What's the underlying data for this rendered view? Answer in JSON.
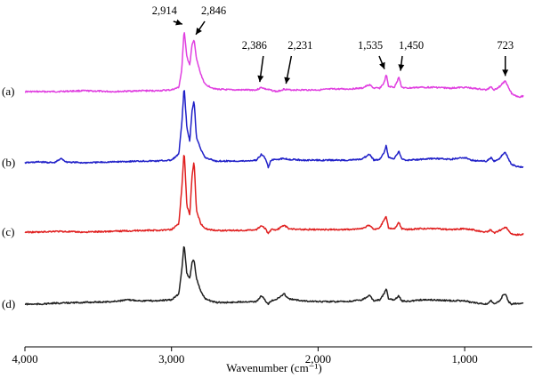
{
  "chart_data": {
    "type": "line",
    "title": "",
    "xlabel": "Wavenumber (cm⁻¹)",
    "ylabel": "",
    "x_reversed": true,
    "xlim": [
      4000,
      600
    ],
    "x_ticks": [
      {
        "value": 4000,
        "label": "4,000"
      },
      {
        "value": 3000,
        "label": "3,000"
      },
      {
        "value": 2000,
        "label": "2,000"
      },
      {
        "value": 1000,
        "label": "1,000"
      }
    ],
    "grid": false,
    "legend": "none",
    "series": [
      {
        "name": "(a)",
        "color": "#e040e0",
        "points": [
          [
            4000,
            0.0
          ],
          [
            3800,
            0.0
          ],
          [
            3600,
            0.01
          ],
          [
            3400,
            0.0
          ],
          [
            3200,
            0.01
          ],
          [
            3100,
            0.01
          ],
          [
            3000,
            0.02
          ],
          [
            2950,
            0.05
          ],
          [
            2930,
            0.25
          ],
          [
            2914,
            0.72
          ],
          [
            2895,
            0.4
          ],
          [
            2875,
            0.3
          ],
          [
            2860,
            0.55
          ],
          [
            2846,
            0.6
          ],
          [
            2830,
            0.38
          ],
          [
            2800,
            0.2
          ],
          [
            2770,
            0.08
          ],
          [
            2700,
            0.03
          ],
          [
            2600,
            0.02
          ],
          [
            2500,
            0.02
          ],
          [
            2420,
            0.02
          ],
          [
            2386,
            0.05
          ],
          [
            2360,
            0.03
          ],
          [
            2330,
            0.02
          ],
          [
            2280,
            0.0
          ],
          [
            2231,
            0.03
          ],
          [
            2200,
            0.02
          ],
          [
            2100,
            0.02
          ],
          [
            2000,
            0.02
          ],
          [
            1900,
            0.03
          ],
          [
            1800,
            0.03
          ],
          [
            1700,
            0.04
          ],
          [
            1650,
            0.08
          ],
          [
            1620,
            0.04
          ],
          [
            1580,
            0.04
          ],
          [
            1550,
            0.1
          ],
          [
            1535,
            0.2
          ],
          [
            1520,
            0.06
          ],
          [
            1480,
            0.05
          ],
          [
            1460,
            0.12
          ],
          [
            1450,
            0.18
          ],
          [
            1430,
            0.05
          ],
          [
            1400,
            0.04
          ],
          [
            1300,
            0.05
          ],
          [
            1200,
            0.05
          ],
          [
            1100,
            0.04
          ],
          [
            1000,
            0.05
          ],
          [
            950,
            0.04
          ],
          [
            900,
            0.03
          ],
          [
            850,
            0.02
          ],
          [
            820,
            0.06
          ],
          [
            800,
            0.02
          ],
          [
            760,
            0.06
          ],
          [
            740,
            0.1
          ],
          [
            723,
            0.12
          ],
          [
            700,
            0.05
          ],
          [
            680,
            -0.02
          ],
          [
            650,
            -0.05
          ],
          [
            620,
            -0.06
          ],
          [
            600,
            -0.05
          ]
        ]
      },
      {
        "name": "(b)",
        "color": "#2020c8",
        "points": [
          [
            4000,
            0.0
          ],
          [
            3900,
            0.01
          ],
          [
            3800,
            0.0
          ],
          [
            3750,
            0.05
          ],
          [
            3720,
            0.01
          ],
          [
            3600,
            0.0
          ],
          [
            3400,
            0.01
          ],
          [
            3200,
            0.02
          ],
          [
            3100,
            0.02
          ],
          [
            3000,
            0.03
          ],
          [
            2950,
            0.1
          ],
          [
            2930,
            0.45
          ],
          [
            2914,
            0.88
          ],
          [
            2895,
            0.4
          ],
          [
            2875,
            0.25
          ],
          [
            2860,
            0.6
          ],
          [
            2846,
            0.72
          ],
          [
            2830,
            0.3
          ],
          [
            2800,
            0.15
          ],
          [
            2770,
            0.06
          ],
          [
            2700,
            0.02
          ],
          [
            2600,
            0.02
          ],
          [
            2500,
            0.02
          ],
          [
            2420,
            0.03
          ],
          [
            2386,
            0.1
          ],
          [
            2360,
            0.05
          ],
          [
            2340,
            -0.05
          ],
          [
            2320,
            0.03
          ],
          [
            2280,
            0.04
          ],
          [
            2231,
            0.05
          ],
          [
            2200,
            0.04
          ],
          [
            2100,
            0.03
          ],
          [
            2000,
            0.03
          ],
          [
            1900,
            0.03
          ],
          [
            1800,
            0.03
          ],
          [
            1700,
            0.04
          ],
          [
            1650,
            0.1
          ],
          [
            1620,
            0.03
          ],
          [
            1580,
            0.04
          ],
          [
            1550,
            0.12
          ],
          [
            1535,
            0.2
          ],
          [
            1520,
            0.06
          ],
          [
            1480,
            0.05
          ],
          [
            1460,
            0.1
          ],
          [
            1450,
            0.14
          ],
          [
            1430,
            0.04
          ],
          [
            1400,
            0.03
          ],
          [
            1300,
            0.04
          ],
          [
            1200,
            0.05
          ],
          [
            1100,
            0.04
          ],
          [
            1000,
            0.06
          ],
          [
            950,
            0.03
          ],
          [
            900,
            0.02
          ],
          [
            850,
            0.02
          ],
          [
            820,
            0.06
          ],
          [
            800,
            0.02
          ],
          [
            760,
            0.05
          ],
          [
            740,
            0.1
          ],
          [
            723,
            0.12
          ],
          [
            700,
            0.04
          ],
          [
            680,
            -0.02
          ],
          [
            650,
            -0.04
          ],
          [
            620,
            -0.05
          ],
          [
            600,
            -0.05
          ]
        ]
      },
      {
        "name": "(c)",
        "color": "#e02020",
        "points": [
          [
            4000,
            0.0
          ],
          [
            3900,
            0.0
          ],
          [
            3800,
            0.01
          ],
          [
            3600,
            0.0
          ],
          [
            3400,
            0.01
          ],
          [
            3200,
            0.02
          ],
          [
            3100,
            0.02
          ],
          [
            3000,
            0.03
          ],
          [
            2950,
            0.1
          ],
          [
            2930,
            0.5
          ],
          [
            2914,
            0.95
          ],
          [
            2895,
            0.3
          ],
          [
            2875,
            0.2
          ],
          [
            2860,
            0.65
          ],
          [
            2846,
            0.82
          ],
          [
            2830,
            0.25
          ],
          [
            2800,
            0.1
          ],
          [
            2770,
            0.04
          ],
          [
            2700,
            0.02
          ],
          [
            2600,
            0.02
          ],
          [
            2500,
            0.02
          ],
          [
            2420,
            0.03
          ],
          [
            2386,
            0.08
          ],
          [
            2360,
            0.04
          ],
          [
            2340,
            -0.02
          ],
          [
            2320,
            0.03
          ],
          [
            2280,
            0.03
          ],
          [
            2231,
            0.08
          ],
          [
            2200,
            0.04
          ],
          [
            2100,
            0.03
          ],
          [
            2000,
            0.03
          ],
          [
            1900,
            0.03
          ],
          [
            1800,
            0.03
          ],
          [
            1700,
            0.04
          ],
          [
            1650,
            0.08
          ],
          [
            1620,
            0.03
          ],
          [
            1580,
            0.05
          ],
          [
            1550,
            0.14
          ],
          [
            1535,
            0.18
          ],
          [
            1520,
            0.05
          ],
          [
            1480,
            0.04
          ],
          [
            1460,
            0.08
          ],
          [
            1450,
            0.12
          ],
          [
            1430,
            0.04
          ],
          [
            1400,
            0.03
          ],
          [
            1300,
            0.04
          ],
          [
            1200,
            0.04
          ],
          [
            1100,
            0.03
          ],
          [
            1000,
            0.04
          ],
          [
            950,
            0.03
          ],
          [
            900,
            0.01
          ],
          [
            850,
            0.0
          ],
          [
            820,
            0.03
          ],
          [
            800,
            -0.01
          ],
          [
            760,
            0.02
          ],
          [
            740,
            0.04
          ],
          [
            723,
            0.06
          ],
          [
            700,
            0.02
          ],
          [
            680,
            -0.02
          ],
          [
            650,
            -0.03
          ],
          [
            620,
            -0.03
          ],
          [
            600,
            -0.02
          ]
        ]
      },
      {
        "name": "(d)",
        "color": "#202020",
        "points": [
          [
            4000,
            0.0
          ],
          [
            3900,
            0.0
          ],
          [
            3800,
            0.01
          ],
          [
            3600,
            0.02
          ],
          [
            3400,
            0.03
          ],
          [
            3300,
            0.05
          ],
          [
            3200,
            0.04
          ],
          [
            3100,
            0.04
          ],
          [
            3000,
            0.05
          ],
          [
            2950,
            0.12
          ],
          [
            2930,
            0.4
          ],
          [
            2914,
            0.7
          ],
          [
            2895,
            0.35
          ],
          [
            2875,
            0.3
          ],
          [
            2860,
            0.48
          ],
          [
            2846,
            0.52
          ],
          [
            2830,
            0.3
          ],
          [
            2800,
            0.15
          ],
          [
            2770,
            0.06
          ],
          [
            2700,
            0.02
          ],
          [
            2600,
            0.02
          ],
          [
            2500,
            0.03
          ],
          [
            2420,
            0.03
          ],
          [
            2386,
            0.1
          ],
          [
            2360,
            0.04
          ],
          [
            2340,
            0.0
          ],
          [
            2320,
            0.04
          ],
          [
            2280,
            0.06
          ],
          [
            2231,
            0.12
          ],
          [
            2200,
            0.06
          ],
          [
            2100,
            0.04
          ],
          [
            2000,
            0.03
          ],
          [
            1900,
            0.03
          ],
          [
            1800,
            0.03
          ],
          [
            1700,
            0.05
          ],
          [
            1650,
            0.1
          ],
          [
            1620,
            0.04
          ],
          [
            1580,
            0.05
          ],
          [
            1550,
            0.12
          ],
          [
            1535,
            0.18
          ],
          [
            1520,
            0.06
          ],
          [
            1480,
            0.05
          ],
          [
            1460,
            0.08
          ],
          [
            1450,
            0.1
          ],
          [
            1430,
            0.04
          ],
          [
            1400,
            0.03
          ],
          [
            1300,
            0.05
          ],
          [
            1200,
            0.05
          ],
          [
            1100,
            0.04
          ],
          [
            1000,
            0.04
          ],
          [
            950,
            0.02
          ],
          [
            900,
            0.01
          ],
          [
            850,
            0.0
          ],
          [
            820,
            0.04
          ],
          [
            800,
            0.0
          ],
          [
            760,
            0.04
          ],
          [
            740,
            0.1
          ],
          [
            723,
            0.12
          ],
          [
            700,
            0.03
          ],
          [
            680,
            0.0
          ],
          [
            650,
            0.01
          ],
          [
            620,
            0.01
          ],
          [
            600,
            0.01
          ]
        ]
      }
    ],
    "annotations": [
      {
        "label": "2,914",
        "x": 2914,
        "series": 0
      },
      {
        "label": "2,846",
        "x": 2846,
        "series": 0
      },
      {
        "label": "2,386",
        "x": 2386,
        "series": 0
      },
      {
        "label": "2,231",
        "x": 2231,
        "series": 0
      },
      {
        "label": "1,535",
        "x": 1535,
        "series": 0
      },
      {
        "label": "1,450",
        "x": 1450,
        "series": 0
      },
      {
        "label": "723",
        "x": 723,
        "series": 0
      }
    ]
  }
}
